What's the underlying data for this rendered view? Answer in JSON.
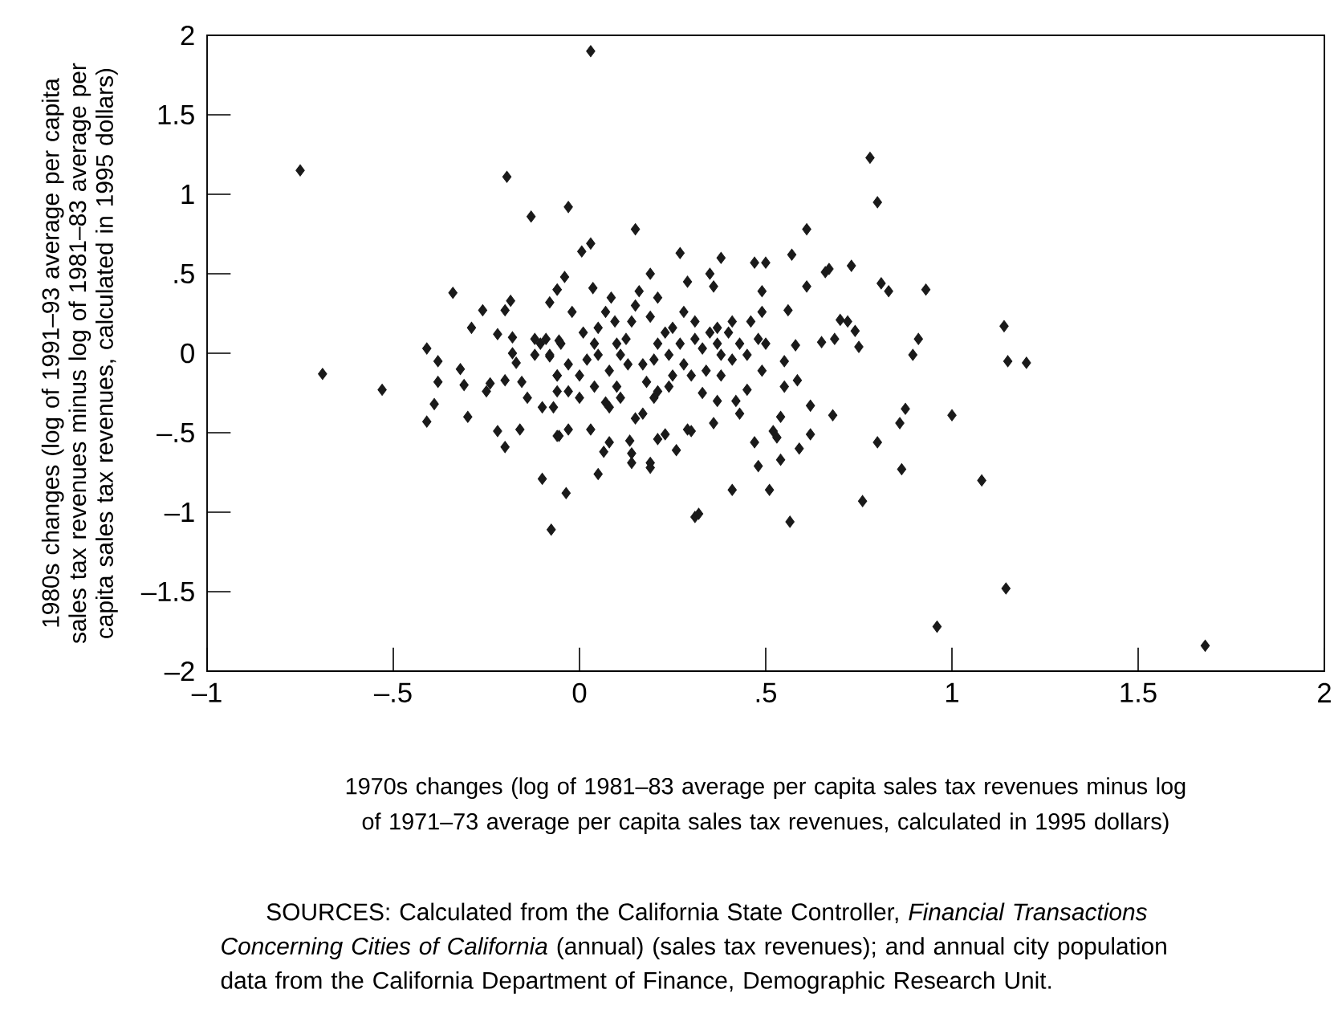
{
  "chart_data": {
    "type": "scatter",
    "xlabel": "1970s changes (log of 1981–83 average per capita sales tax revenues minus log of 1971–73 average per capita sales tax revenues, calculated in 1995 dollars)",
    "ylabel": "1980s changes (log of 1991–93 average per capita sales tax revenues minus log of 1981–83 average per capita sales tax revenues, calculated in 1995 dollars)",
    "annotations": [
      "SOURCES:  Calculated from the California State Controller, *Financial Transactions Concerning Cities of California* (annual) (sales tax revenues); and annual city population data from the California Department of Finance, Demographic Research Unit."
    ],
    "xlim": [
      -1,
      2
    ],
    "ylim": [
      -2,
      2
    ],
    "xticks": [
      {
        "value": -1,
        "label": "–1"
      },
      {
        "value": -0.5,
        "label": "–.5"
      },
      0,
      {
        "value": 0.5,
        "label": ".5"
      },
      1,
      1.5,
      2
    ],
    "yticks": [
      {
        "value": -2,
        "label": "–2"
      },
      {
        "value": -1.5,
        "label": "–1.5"
      },
      {
        "value": -1,
        "label": "–1"
      },
      {
        "value": -0.5,
        "label": "–.5"
      },
      0,
      {
        "value": 0.5,
        "label": ".5"
      },
      1,
      1.5,
      2
    ],
    "marker": "diamond",
    "grid": false,
    "series": [
      {
        "color": "#1a1a1a",
        "x": [
          -0.75,
          -0.69,
          -0.53,
          -0.41,
          -0.38,
          -0.38,
          -0.39,
          -0.41,
          -0.34,
          -0.32,
          -0.31,
          -0.3,
          -0.29,
          -0.26,
          -0.25,
          -0.24,
          -0.22,
          -0.22,
          -0.2,
          -0.195,
          -0.185,
          -0.18,
          -0.18,
          -0.2,
          -0.2,
          -0.16,
          -0.17,
          -0.155,
          -0.14,
          -0.13,
          -0.12,
          -0.12,
          -0.105,
          -0.1,
          -0.1,
          -0.076,
          -0.08,
          -0.07,
          -0.06,
          -0.06,
          -0.08,
          -0.09,
          -0.06,
          -0.055,
          -0.06,
          0.03,
          -0.03,
          0.15,
          0.03,
          0.006,
          0.27,
          0.38,
          0.47,
          0.5,
          0.57,
          0.61,
          0.78,
          0.8,
          0.73,
          0.66,
          0.67,
          0.61,
          0.56,
          0.49,
          0.19,
          0.29,
          0.35,
          0.36,
          -0.04,
          -0.06,
          0.036,
          0.085,
          0.16,
          0.21,
          0.81,
          0.83,
          0.93,
          0.7,
          0.72,
          0.74,
          0.75,
          0.685,
          0.65,
          0.91,
          0.895,
          0.58,
          0.55,
          0.55,
          0.585,
          0.62,
          0.68,
          0.62,
          0.59,
          0.54,
          0.54,
          0.52,
          0.53,
          0.47,
          0.48,
          0.51,
          0.565,
          0.41,
          0.31,
          0.32,
          0.49,
          0.45,
          0.43,
          0.42,
          0.36,
          0.37,
          0.33,
          0.29,
          0.3,
          0.26,
          0.23,
          0.21,
          0.19,
          0.19,
          0.14,
          0.14,
          0.135,
          0.08,
          0.065,
          0.05,
          0.03,
          -0.03,
          -0.055,
          -0.036,
          0.76,
          0.8,
          0.865,
          0.86,
          0.875,
          0.96,
          -0.08,
          -0.05,
          -0.03,
          0.0,
          0.02,
          0.04,
          0.05,
          0.07,
          0.08,
          0.1,
          0.11,
          0.125,
          0.14,
          0.15,
          0.17,
          0.18,
          0.2,
          0.21,
          0.23,
          0.24,
          0.25,
          0.27,
          0.28,
          0.3,
          0.31,
          0.33,
          0.35,
          0.37,
          0.38,
          0.4,
          0.41,
          0.43,
          0.45,
          0.46,
          0.48,
          0.49,
          0.5,
          0.11,
          0.08,
          0.15,
          0.17,
          0.21,
          0.25,
          0.0,
          -0.03,
          -0.06,
          0.04,
          0.07,
          0.01,
          -0.02,
          0.095,
          0.19,
          0.28,
          0.31,
          0.37,
          0.41,
          0.24,
          0.34,
          0.38,
          0.05,
          0.13,
          0.2,
          0.1,
          1.14,
          1.15,
          1.2,
          1.0,
          1.08,
          1.145,
          1.68
        ],
        "values": [
          1.15,
          -0.13,
          -0.23,
          0.03,
          -0.05,
          -0.18,
          -0.32,
          -0.43,
          0.38,
          -0.1,
          -0.2,
          -0.4,
          0.16,
          0.27,
          -0.24,
          -0.19,
          0.12,
          -0.49,
          0.27,
          1.11,
          0.33,
          0.1,
          0.0,
          -0.17,
          -0.59,
          -0.48,
          -0.06,
          -0.18,
          -0.28,
          0.86,
          0.09,
          -0.01,
          0.06,
          -0.34,
          -0.79,
          -1.11,
          -0.02,
          -0.34,
          -0.52,
          0.4,
          0.32,
          0.09,
          -0.14,
          0.08,
          -0.24,
          1.9,
          0.92,
          0.78,
          0.69,
          0.64,
          0.63,
          0.6,
          0.57,
          0.57,
          0.62,
          0.78,
          1.23,
          0.95,
          0.55,
          0.51,
          0.53,
          0.42,
          0.27,
          0.39,
          0.5,
          0.45,
          0.5,
          0.42,
          0.48,
          0.4,
          0.41,
          0.35,
          0.39,
          0.35,
          0.44,
          0.39,
          0.4,
          0.21,
          0.2,
          0.14,
          0.04,
          0.09,
          0.07,
          0.09,
          -0.01,
          0.05,
          -0.05,
          -0.21,
          -0.17,
          -0.33,
          -0.39,
          -0.51,
          -0.6,
          -0.4,
          -0.67,
          -0.49,
          -0.53,
          -0.56,
          -0.71,
          -0.86,
          -1.06,
          -0.86,
          -1.03,
          -1.01,
          -0.11,
          -0.23,
          -0.38,
          -0.3,
          -0.44,
          -0.3,
          -0.25,
          -0.48,
          -0.49,
          -0.61,
          -0.51,
          -0.54,
          -0.69,
          -0.72,
          -0.69,
          -0.63,
          -0.55,
          -0.56,
          -0.62,
          -0.76,
          -0.48,
          -0.48,
          -0.52,
          -0.88,
          -0.93,
          -0.56,
          -0.73,
          -0.44,
          -0.35,
          -1.72,
          -0.01,
          0.06,
          -0.07,
          -0.14,
          -0.04,
          0.06,
          0.16,
          0.26,
          -0.11,
          -0.21,
          -0.01,
          0.09,
          0.2,
          0.3,
          -0.07,
          -0.18,
          -0.28,
          0.06,
          0.13,
          -0.01,
          0.16,
          0.06,
          -0.07,
          -0.14,
          0.09,
          0.03,
          0.13,
          0.06,
          -0.01,
          0.13,
          -0.04,
          0.06,
          -0.01,
          0.2,
          0.09,
          0.26,
          0.06,
          -0.28,
          -0.34,
          -0.41,
          -0.38,
          -0.24,
          -0.14,
          -0.28,
          -0.24,
          -0.14,
          -0.21,
          -0.31,
          0.13,
          0.26,
          0.2,
          0.23,
          0.26,
          0.2,
          0.16,
          0.2,
          -0.21,
          -0.11,
          -0.14,
          -0.01,
          -0.07,
          -0.04,
          0.06,
          0.17,
          -0.05,
          -0.06,
          -0.39,
          -0.8,
          -1.48,
          -1.84
        ]
      }
    ]
  }
}
